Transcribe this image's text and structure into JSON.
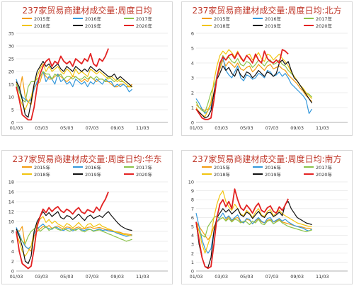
{
  "chart_data": [
    {
      "type": "line",
      "title": "237家贸易商建材成交量:周度日均",
      "ylim": [
        0,
        35
      ],
      "yticks": [
        0,
        5,
        10,
        15,
        20,
        25,
        30,
        35
      ],
      "xticks": [
        "01/03",
        "03/03",
        "05/03",
        "07/03",
        "09/03",
        "11/03"
      ],
      "legend_position": "top",
      "series": [
        {
          "name": "2015年",
          "color": "#f39c12",
          "values": [
            16,
            12,
            18,
            10,
            8,
            7,
            14,
            15,
            16,
            20,
            18,
            17,
            17,
            18,
            19,
            18,
            17,
            16,
            17,
            18,
            18,
            17,
            16,
            17,
            16,
            18,
            17,
            16,
            17,
            17,
            16,
            16,
            15,
            14,
            14,
            15,
            15,
            14,
            14,
            15
          ]
        },
        {
          "name": "2016年",
          "color": "#3498db",
          "values": [
            17,
            13,
            10,
            9,
            8,
            9,
            13,
            16,
            18,
            20,
            16,
            18,
            17,
            15,
            19,
            16,
            17,
            15,
            16,
            14,
            17,
            16,
            15,
            16,
            14,
            16,
            15,
            17,
            16,
            15,
            17,
            16,
            16,
            14,
            15,
            14,
            15,
            14,
            12,
            13
          ]
        },
        {
          "name": "2017年",
          "color": "#8bc34a",
          "values": [
            15,
            12,
            9,
            8,
            14,
            16,
            16,
            17,
            18,
            20,
            19,
            19,
            17,
            19,
            18,
            19,
            17,
            18,
            18,
            17,
            18,
            17,
            17,
            18,
            17,
            18,
            17,
            18,
            17,
            17,
            16,
            18,
            17,
            16,
            17,
            16,
            16,
            15,
            14,
            14
          ]
        },
        {
          "name": "2018年",
          "color": "#f1c40f",
          "values": [
            14,
            10,
            7,
            5,
            8,
            10,
            15,
            18,
            21,
            23,
            20,
            22,
            20,
            21,
            22,
            20,
            19,
            21,
            20,
            18,
            21,
            19,
            20,
            19,
            18,
            21,
            20,
            19,
            20,
            19,
            18,
            17,
            18,
            17,
            16,
            17,
            16,
            15,
            14,
            14
          ]
        },
        {
          "name": "2019年",
          "color": "#111111",
          "values": [
            16,
            14,
            9,
            3,
            2,
            8,
            15,
            20,
            22,
            24,
            22,
            23,
            21,
            22,
            23,
            21,
            20,
            22,
            21,
            20,
            22,
            21,
            20,
            21,
            20,
            22,
            21,
            20,
            21,
            20,
            19,
            18,
            18,
            19,
            17,
            18,
            17,
            16,
            15,
            14
          ]
        },
        {
          "name": "2020年",
          "color": "#e32222",
          "values": [
            14,
            9,
            3,
            2,
            1,
            1,
            6,
            14,
            19,
            22,
            24,
            25,
            22,
            24,
            23,
            26,
            24,
            23,
            24,
            22,
            25,
            24,
            23,
            25,
            24,
            27,
            23,
            22,
            25,
            24,
            26,
            29
          ]
        }
      ]
    },
    {
      "type": "line",
      "title": "237家贸易商建材成交量:周度日均:北方",
      "ylim": [
        0,
        6
      ],
      "yticks": [
        0,
        1,
        2,
        3,
        4,
        5,
        6
      ],
      "xticks": [
        "01/03",
        "03/03",
        "05/03",
        "07/03",
        "09/03",
        "11/03"
      ],
      "legend_position": "top",
      "series": [
        {
          "name": "2015年",
          "color": "#f39c12",
          "values": [
            1.2,
            1.0,
            0.9,
            0.8,
            0.9,
            1.2,
            2.0,
            3.0,
            3.6,
            4.2,
            3.8,
            4.1,
            3.9,
            3.7,
            4.0,
            3.6,
            3.5,
            3.7,
            3.8,
            3.4,
            3.6,
            3.9,
            3.7,
            3.5,
            3.8,
            3.9,
            3.6,
            3.7,
            3.8,
            3.6,
            3.5,
            3.2,
            3.0,
            2.8,
            2.6,
            2.3,
            2.1,
            1.8,
            1.6,
            1.4
          ]
        },
        {
          "name": "2016年",
          "color": "#3498db",
          "values": [
            1.6,
            1.3,
            0.9,
            0.6,
            0.8,
            1.0,
            2.0,
            3.2,
            3.8,
            4.4,
            3.5,
            3.2,
            3.0,
            3.4,
            3.8,
            3.0,
            2.8,
            3.2,
            3.1,
            2.9,
            3.0,
            3.3,
            3.2,
            3.0,
            3.5,
            3.4,
            3.1,
            3.2,
            3.4,
            3.1,
            3.3,
            3.0,
            2.6,
            2.4,
            2.2,
            2.0,
            1.8,
            1.5,
            0.6,
            0.9
          ]
        },
        {
          "name": "2017年",
          "color": "#8bc34a",
          "values": [
            1.4,
            1.0,
            0.8,
            0.7,
            1.3,
            2.0,
            2.5,
            3.0,
            3.8,
            4.5,
            4.2,
            4.4,
            4.1,
            4.0,
            4.3,
            3.9,
            3.8,
            4.1,
            4.0,
            3.7,
            3.9,
            4.2,
            4.0,
            3.8,
            4.1,
            4.2,
            3.9,
            4.0,
            4.2,
            3.9,
            3.8,
            3.5,
            3.3,
            3.1,
            2.8,
            2.5,
            2.3,
            2.0,
            1.9,
            1.7
          ]
        },
        {
          "name": "2018年",
          "color": "#f1c40f",
          "values": [
            1.0,
            0.7,
            0.5,
            0.4,
            0.8,
            1.4,
            2.8,
            3.8,
            4.5,
            4.8,
            4.6,
            4.9,
            4.7,
            4.4,
            4.8,
            4.3,
            4.1,
            4.5,
            4.6,
            4.2,
            4.4,
            4.7,
            4.3,
            4.1,
            4.6,
            4.5,
            4.2,
            4.4,
            4.6,
            4.3,
            4.1,
            3.8,
            3.4,
            3.1,
            2.8,
            2.5,
            2.3,
            2.0,
            1.8,
            1.6
          ]
        },
        {
          "name": "2019年",
          "color": "#111111",
          "values": [
            0.9,
            0.7,
            0.5,
            0.3,
            0.4,
            0.8,
            2.0,
            2.9,
            3.3,
            3.8,
            3.5,
            3.7,
            3.3,
            3.1,
            3.6,
            3.2,
            3.0,
            3.4,
            3.3,
            3.0,
            3.2,
            3.5,
            3.3,
            3.1,
            3.4,
            3.3,
            3.1,
            3.3,
            4.0,
            4.2,
            3.9,
            4.1,
            3.5,
            3.0,
            2.8,
            2.5,
            2.2,
            1.9,
            1.6,
            1.3
          ]
        },
        {
          "name": "2020年",
          "color": "#e32222",
          "values": [
            0.9,
            0.6,
            0.3,
            0.2,
            0.2,
            0.3,
            1.5,
            3.0,
            4.0,
            4.4,
            4.2,
            4.5,
            4.6,
            4.3,
            4.7,
            4.4,
            4.1,
            4.5,
            4.3,
            4.0,
            4.6,
            4.2,
            4.0,
            4.8,
            4.3,
            4.1,
            4.0,
            4.2,
            4.0,
            4.9,
            4.8,
            4.6
          ]
        }
      ]
    },
    {
      "type": "line",
      "title": "237家贸易商建材成交量:周度日均:华东",
      "ylim": [
        0,
        18
      ],
      "yticks": [
        0,
        2,
        4,
        6,
        8,
        10,
        12,
        14,
        16,
        18
      ],
      "xticks": [
        "01/03",
        "03/03",
        "05/03",
        "07/03",
        "09/03",
        "11/03"
      ],
      "legend_position": "top",
      "series": [
        {
          "name": "2015年",
          "color": "#f39c12",
          "values": [
            8.5,
            8.0,
            9.0,
            5.0,
            4.5,
            4.0,
            7.0,
            8.0,
            8.5,
            9.0,
            8.8,
            9.2,
            8.6,
            8.9,
            9.1,
            8.7,
            8.5,
            8.9,
            8.8,
            8.4,
            8.7,
            8.9,
            8.6,
            8.5,
            8.8,
            8.9,
            8.6,
            8.7,
            8.8,
            8.6,
            8.4,
            8.3,
            8.2,
            8.0,
            7.9,
            7.8,
            7.6,
            7.5,
            7.4,
            7.3
          ]
        },
        {
          "name": "2016年",
          "color": "#3498db",
          "values": [
            8.8,
            7.5,
            6.0,
            5.0,
            4.5,
            5.0,
            7.5,
            8.5,
            9.0,
            9.5,
            8.8,
            8.6,
            8.4,
            8.9,
            8.7,
            8.3,
            8.2,
            8.6,
            8.5,
            8.1,
            8.4,
            8.6,
            8.3,
            8.2,
            8.5,
            8.4,
            8.1,
            8.3,
            8.5,
            8.2,
            8.3,
            8.1,
            8.0,
            7.9,
            7.6,
            7.4,
            7.2,
            7.0,
            7.1,
            7.3
          ]
        },
        {
          "name": "2017年",
          "color": "#8bc34a",
          "values": [
            8.0,
            7.0,
            6.0,
            5.5,
            7.0,
            8.0,
            8.5,
            9.0,
            8.0,
            8.5,
            9.0,
            8.2,
            8.6,
            8.8,
            8.4,
            8.2,
            8.5,
            8.3,
            8.0,
            8.4,
            8.2,
            8.6,
            8.1,
            7.9,
            8.3,
            8.4,
            8.0,
            8.2,
            8.3,
            8.0,
            7.8,
            7.5,
            7.3,
            7.0,
            6.8,
            6.5,
            6.3,
            6.0,
            6.2,
            6.4
          ]
        },
        {
          "name": "2018年",
          "color": "#f1c40f",
          "values": [
            7.5,
            6.0,
            4.0,
            3.0,
            4.0,
            5.0,
            8.0,
            9.5,
            10.5,
            11.0,
            9.8,
            10.4,
            9.6,
            10.1,
            9.5,
            9.2,
            8.8,
            9.6,
            9.3,
            8.7,
            9.2,
            9.8,
            9.1,
            8.6,
            9.4,
            9.6,
            8.9,
            9.2,
            9.5,
            9.0,
            8.8,
            8.5,
            8.3,
            8.0,
            7.8,
            7.6,
            7.4,
            7.3,
            7.2,
            7.1
          ]
        },
        {
          "name": "2019年",
          "color": "#111111",
          "values": [
            8.5,
            7.0,
            5.0,
            2.0,
            1.5,
            3.0,
            8.0,
            10.0,
            11.0,
            12.0,
            11.2,
            11.8,
            11.0,
            11.5,
            12.0,
            10.8,
            10.5,
            11.2,
            11.0,
            10.4,
            10.9,
            11.5,
            10.8,
            10.2,
            11.0,
            11.3,
            10.6,
            10.9,
            11.2,
            10.8,
            11.5,
            12.0,
            11.2,
            10.5,
            9.8,
            9.2,
            8.8,
            8.5,
            8.3,
            8.2
          ]
        },
        {
          "name": "2020年",
          "color": "#e32222",
          "values": [
            8.0,
            4.0,
            1.5,
            1.0,
            0.5,
            1.0,
            4.5,
            9.0,
            11.0,
            12.5,
            11.8,
            12.8,
            12.0,
            12.6,
            13.0,
            12.2,
            11.8,
            12.5,
            12.1,
            11.5,
            12.3,
            12.8,
            11.9,
            11.6,
            12.4,
            12.1,
            11.8,
            12.9,
            12.2,
            13.5,
            14.5,
            16.0
          ]
        }
      ]
    },
    {
      "type": "line",
      "title": "237家贸易商建材成交量:周度日均:南方",
      "ylim": [
        0,
        10
      ],
      "yticks": [
        0,
        1,
        2,
        3,
        4,
        5,
        6,
        7,
        8,
        9,
        10
      ],
      "xticks": [
        "01/03",
        "03/03",
        "05/03",
        "07/03",
        "09/03",
        "11/03"
      ],
      "legend_position": "top",
      "series": [
        {
          "name": "2015年",
          "color": "#f39c12",
          "values": [
            5.5,
            5.0,
            4.5,
            4.0,
            3.5,
            4.0,
            5.0,
            5.5,
            5.8,
            6.0,
            5.7,
            6.1,
            5.6,
            5.9,
            6.0,
            5.5,
            5.4,
            5.8,
            5.7,
            5.3,
            5.6,
            5.9,
            5.5,
            5.4,
            5.7,
            5.8,
            5.5,
            5.6,
            5.8,
            5.5,
            5.4,
            5.3,
            5.2,
            5.1,
            5.0,
            5.0,
            4.9,
            4.8,
            4.8,
            4.7
          ]
        },
        {
          "name": "2016年",
          "color": "#3498db",
          "values": [
            6.5,
            5.0,
            3.5,
            2.5,
            2.0,
            2.5,
            4.5,
            5.5,
            6.0,
            6.5,
            5.9,
            6.2,
            5.7,
            6.0,
            6.3,
            5.6,
            5.4,
            5.9,
            5.8,
            5.3,
            5.7,
            6.0,
            5.6,
            5.4,
            5.9,
            6.0,
            5.5,
            5.7,
            5.9,
            5.6,
            5.8,
            5.5,
            5.3,
            5.1,
            5.0,
            4.9,
            4.8,
            4.6,
            4.5,
            4.7
          ]
        },
        {
          "name": "2017年",
          "color": "#8bc34a",
          "values": [
            5.0,
            4.5,
            4.0,
            3.8,
            5.0,
            5.5,
            6.0,
            6.2,
            5.8,
            6.0,
            5.6,
            5.9,
            5.5,
            5.8,
            5.7,
            5.4,
            5.6,
            5.5,
            5.2,
            5.6,
            5.4,
            5.8,
            5.3,
            5.2,
            5.6,
            5.7,
            5.3,
            5.5,
            5.7,
            5.4,
            5.2,
            5.0,
            4.9,
            4.8,
            4.7,
            4.6,
            4.5,
            4.4,
            4.5,
            4.6
          ]
        },
        {
          "name": "2018年",
          "color": "#f1c40f",
          "values": [
            5.5,
            4.5,
            3.0,
            2.0,
            3.0,
            4.0,
            6.0,
            7.5,
            8.5,
            9.0,
            7.8,
            7.2,
            6.8,
            7.5,
            7.0,
            6.4,
            6.2,
            6.8,
            6.5,
            6.0,
            6.6,
            7.0,
            6.3,
            6.1,
            6.7,
            6.9,
            6.2,
            6.5,
            6.8,
            6.4,
            6.2,
            6.0,
            5.8,
            5.6,
            5.4,
            5.3,
            5.2,
            5.1,
            5.0,
            5.0
          ]
        },
        {
          "name": "2019年",
          "color": "#111111",
          "values": [
            5.5,
            3.0,
            1.5,
            0.5,
            0.4,
            1.5,
            4.5,
            6.0,
            6.5,
            7.0,
            6.6,
            6.9,
            6.4,
            6.7,
            7.0,
            6.3,
            6.1,
            6.6,
            6.4,
            5.9,
            6.3,
            6.7,
            6.2,
            6.0,
            6.5,
            6.6,
            6.1,
            6.3,
            6.6,
            6.2,
            7.5,
            7.8,
            7.0,
            6.5,
            6.0,
            5.8,
            5.6,
            5.4,
            5.3,
            5.2
          ]
        },
        {
          "name": "2020年",
          "color": "#e32222",
          "values": [
            5.5,
            3.5,
            1.5,
            0.5,
            0.3,
            0.5,
            3.0,
            6.0,
            7.5,
            8.0,
            7.2,
            7.8,
            7.0,
            9.2,
            8.0,
            7.1,
            6.8,
            7.4,
            7.0,
            6.5,
            7.2,
            7.6,
            6.8,
            6.6,
            7.1,
            7.3,
            6.7,
            6.5,
            7.2,
            6.8,
            7.4,
            8.1
          ]
        }
      ]
    }
  ]
}
